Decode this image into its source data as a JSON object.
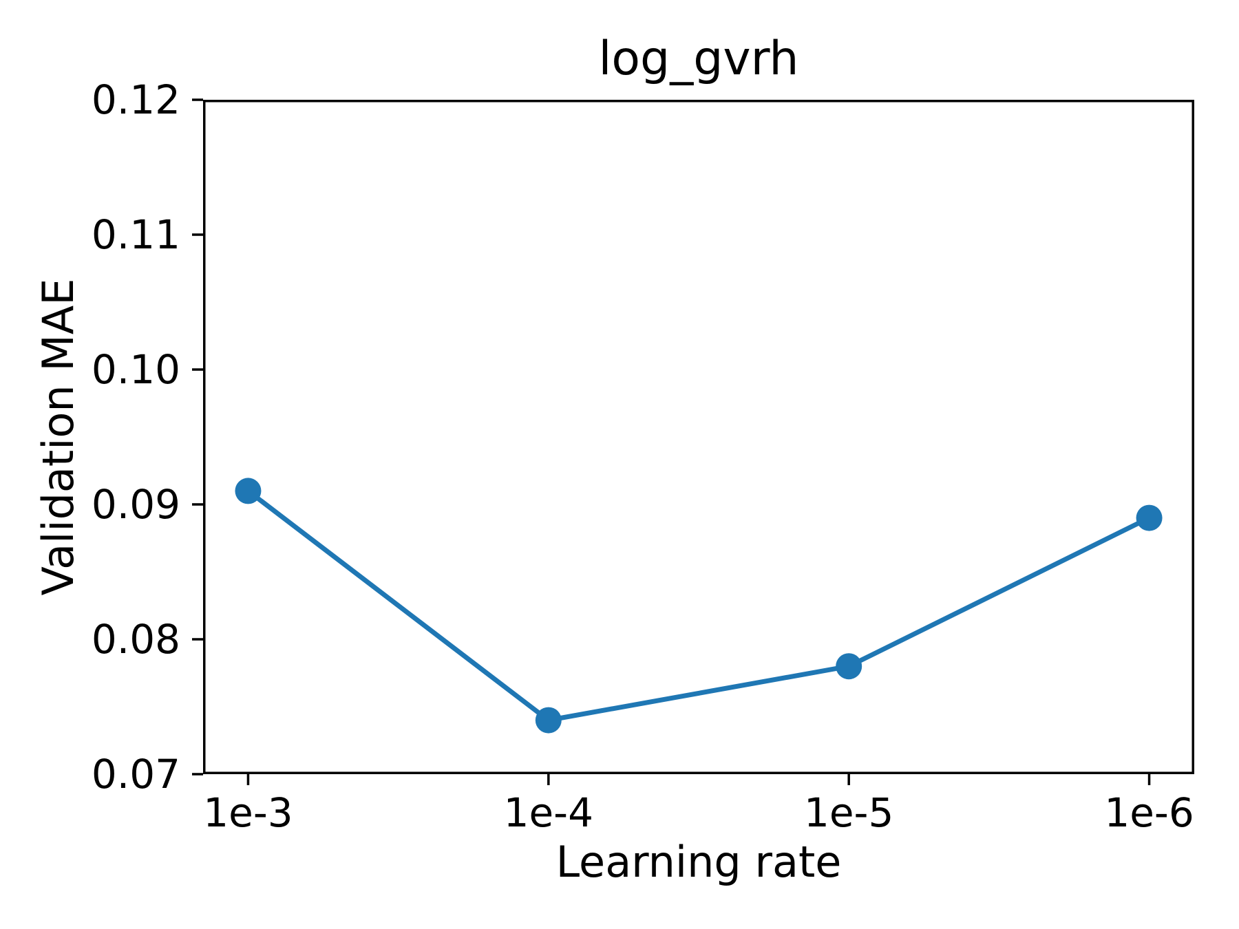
{
  "figure": {
    "background": "#ffffff",
    "axis_color": "#000000"
  },
  "chart_data": {
    "type": "line",
    "title": "log_gvrh",
    "xlabel": "Learning rate",
    "ylabel": "Validation MAE",
    "categories": [
      "1e-3",
      "1e-4",
      "1e-5",
      "1e-6"
    ],
    "values": [
      0.091,
      0.074,
      0.078,
      0.089
    ],
    "ylim": [
      0.07,
      0.12
    ],
    "yticks": [
      0.12,
      0.11,
      0.1,
      0.09,
      0.08,
      0.07
    ],
    "ytick_decimals": 2,
    "line_color": "#1f77b4",
    "marker": "circle",
    "grid": false,
    "legend_position": "none"
  }
}
